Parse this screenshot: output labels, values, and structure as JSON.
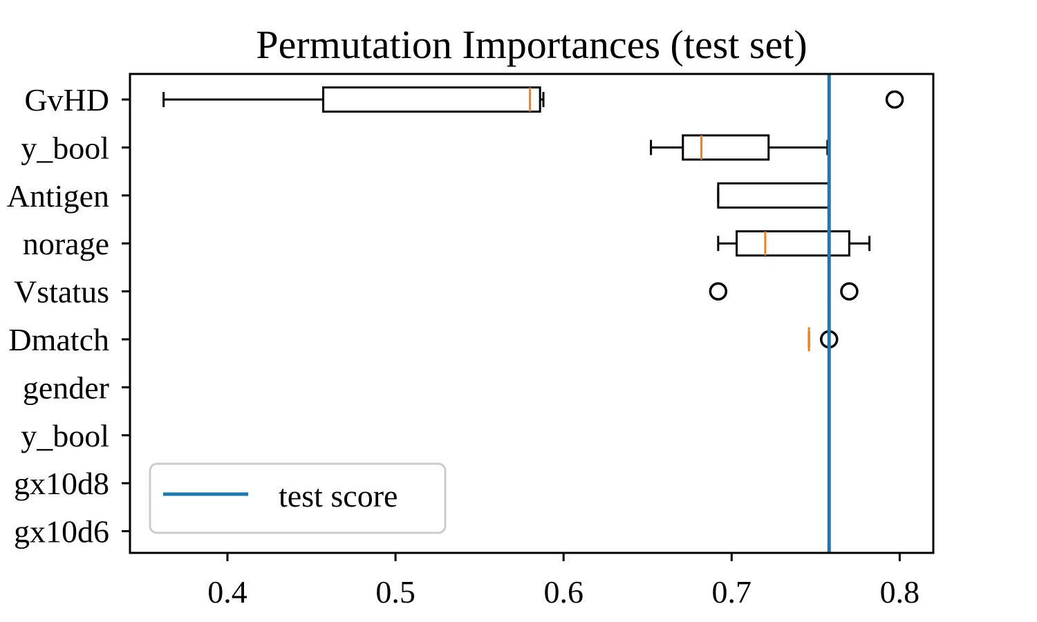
{
  "chart_data": {
    "type": "box",
    "title": "Permutation Importances (test set)",
    "xlabel": "",
    "ylabel": "",
    "xlim": [
      0.342,
      0.82
    ],
    "x_ticks": [
      0.4,
      0.5,
      0.6,
      0.7,
      0.8
    ],
    "x_tick_labels": [
      "0.4",
      "0.5",
      "0.6",
      "0.7",
      "0.8"
    ],
    "categories": [
      "GvHD",
      "y_bool",
      "Antigen",
      "norage",
      "Vstatus",
      "Dmatch",
      "gender",
      "y_bool",
      "gx10d8",
      "gx10d6"
    ],
    "boxes": [
      {
        "category": "GvHD",
        "whislo": 0.362,
        "q1": 0.457,
        "median": 0.58,
        "q3": 0.586,
        "whishi": 0.588,
        "fliers": [
          0.797
        ]
      },
      {
        "category": "y_bool",
        "whislo": 0.652,
        "q1": 0.671,
        "median": 0.682,
        "q3": 0.722,
        "whishi": 0.757,
        "fliers": []
      },
      {
        "category": "Antigen",
        "whislo": 0.692,
        "q1": 0.692,
        "median": 0.758,
        "q3": 0.758,
        "whishi": 0.758,
        "fliers": []
      },
      {
        "category": "norage",
        "whislo": 0.692,
        "q1": 0.703,
        "median": 0.72,
        "q3": 0.77,
        "whishi": 0.782,
        "fliers": []
      },
      {
        "category": "Vstatus",
        "whislo": 0.758,
        "q1": 0.758,
        "median": 0.758,
        "q3": 0.758,
        "whishi": 0.758,
        "fliers": [
          0.692,
          0.77
        ]
      },
      {
        "category": "Dmatch",
        "whislo": 0.746,
        "q1": 0.746,
        "median": 0.746,
        "q3": 0.746,
        "whishi": 0.746,
        "fliers": [
          0.758
        ]
      },
      {
        "category": "gender",
        "whislo": 0.758,
        "q1": 0.758,
        "median": 0.758,
        "q3": 0.758,
        "whishi": 0.758,
        "fliers": []
      },
      {
        "category": "y_bool",
        "whislo": 0.758,
        "q1": 0.758,
        "median": 0.758,
        "q3": 0.758,
        "whishi": 0.758,
        "fliers": []
      },
      {
        "category": "gx10d8",
        "whislo": 0.758,
        "q1": 0.758,
        "median": 0.758,
        "q3": 0.758,
        "whishi": 0.758,
        "fliers": []
      },
      {
        "category": "gx10d6",
        "whislo": 0.758,
        "q1": 0.758,
        "median": 0.758,
        "q3": 0.758,
        "whishi": 0.758,
        "fliers": []
      }
    ],
    "reference_line": {
      "label": "test score",
      "value": 0.758,
      "color": "#1f77b4"
    },
    "median_color": "#ff7f0e",
    "box_color": "#000000",
    "legend": {
      "position": "lower-left",
      "entries": [
        "test score"
      ]
    },
    "grid": false
  }
}
